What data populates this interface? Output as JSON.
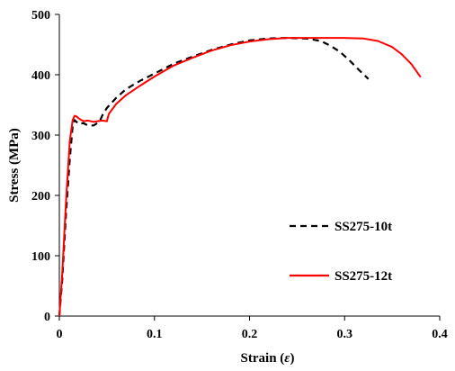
{
  "chart_data": {
    "type": "line",
    "title": "",
    "xlabel": "Strain (",
    "xlabel_symbol": "ε",
    "xlabel_close": ")",
    "ylabel": "Stress (MPa)",
    "xlim": [
      0,
      0.4
    ],
    "ylim": [
      0,
      500
    ],
    "xticks": [
      0,
      0.1,
      0.2,
      0.3,
      0.4
    ],
    "xtick_labels": [
      "0",
      "0.1",
      "0.2",
      "0.3",
      "0.4"
    ],
    "yticks": [
      0,
      100,
      200,
      300,
      400,
      500
    ],
    "ytick_labels": [
      "0",
      "100",
      "200",
      "300",
      "400",
      "500"
    ],
    "grid": false,
    "legend_position": "lower-right",
    "series": [
      {
        "name": "SS275-10t",
        "color": "#000000",
        "style": "dashed",
        "x": [
          0,
          0.003,
          0.007,
          0.011,
          0.014,
          0.016,
          0.018,
          0.021,
          0.025,
          0.03,
          0.036,
          0.04,
          0.043,
          0.046,
          0.05,
          0.06,
          0.07,
          0.085,
          0.1,
          0.12,
          0.14,
          0.16,
          0.18,
          0.2,
          0.22,
          0.24,
          0.26,
          0.275,
          0.285,
          0.295,
          0.305,
          0.315,
          0.325
        ],
        "y": [
          0,
          60,
          170,
          260,
          315,
          325,
          322,
          318,
          320,
          316,
          316,
          320,
          325,
          335,
          345,
          362,
          376,
          390,
          402,
          418,
          430,
          441,
          450,
          457,
          460,
          461,
          460,
          456,
          448,
          438,
          424,
          408,
          393
        ]
      },
      {
        "name": "SS275-12t",
        "color": "#ff0000",
        "style": "solid",
        "x": [
          0,
          0.003,
          0.007,
          0.011,
          0.014,
          0.016,
          0.018,
          0.02,
          0.023,
          0.026,
          0.03,
          0.036,
          0.04,
          0.045,
          0.05,
          0.052,
          0.06,
          0.07,
          0.085,
          0.1,
          0.12,
          0.14,
          0.16,
          0.18,
          0.2,
          0.22,
          0.24,
          0.26,
          0.28,
          0.3,
          0.32,
          0.335,
          0.35,
          0.36,
          0.37,
          0.38
        ],
        "y": [
          0,
          70,
          190,
          290,
          325,
          332,
          331,
          328,
          325,
          323,
          324,
          322,
          323,
          324,
          323,
          335,
          352,
          366,
          382,
          397,
          415,
          428,
          440,
          449,
          455,
          459,
          461,
          461,
          461,
          461,
          460,
          456,
          446,
          434,
          418,
          396
        ]
      }
    ]
  }
}
